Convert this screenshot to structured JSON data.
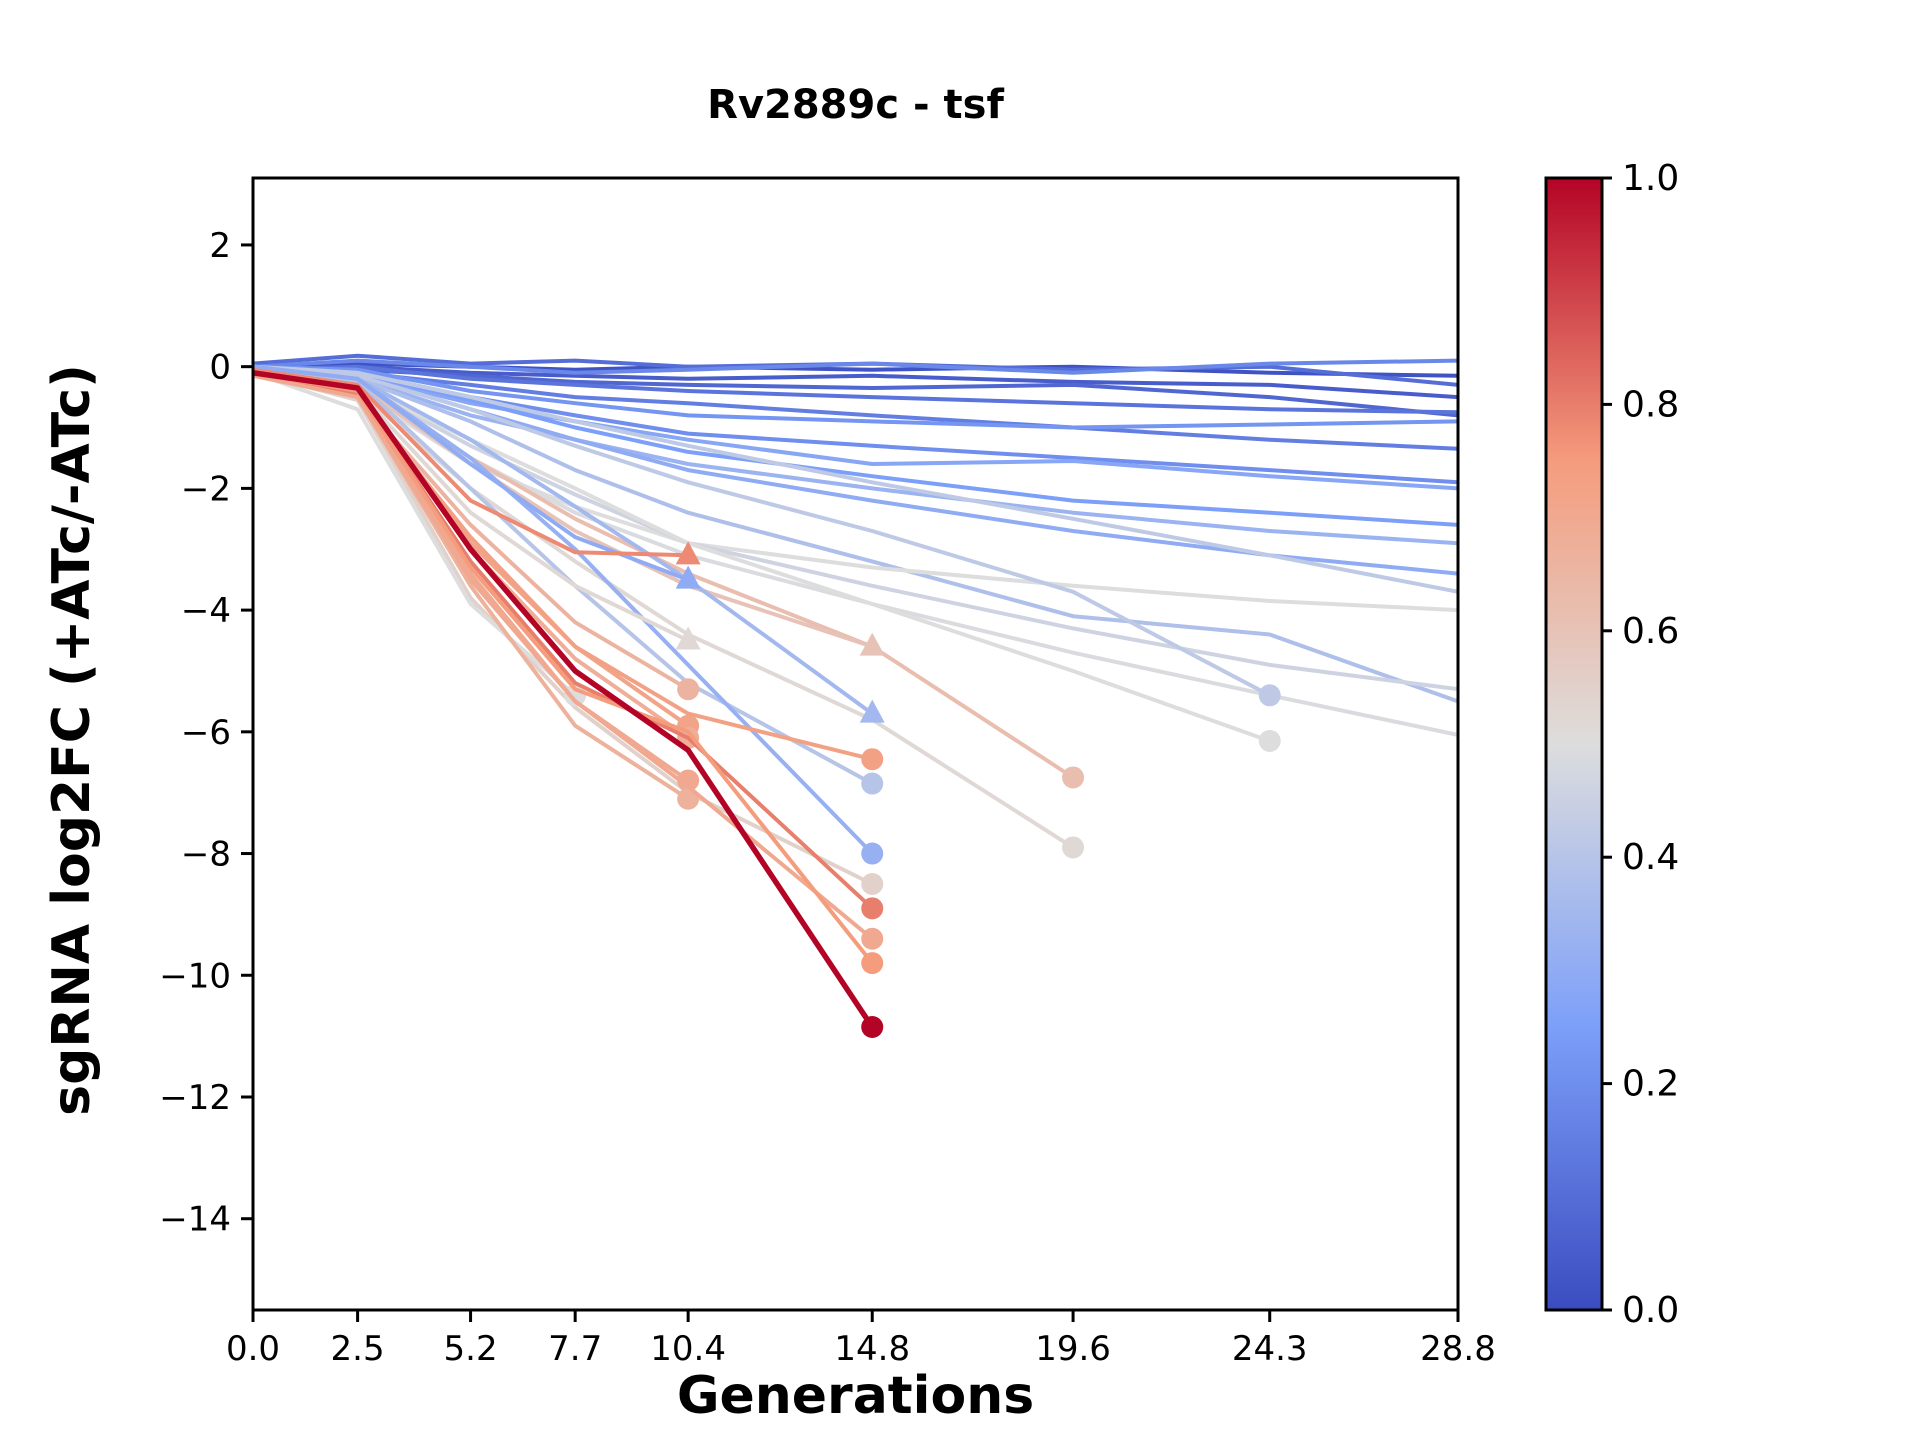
{
  "chart": {
    "title": "Rv2889c - tsf",
    "xlabel": "Generations",
    "ylabel": "sgRNA log2FC (+ATc/-ATc)"
  },
  "chart_data": {
    "type": "line",
    "title": "Rv2889c - tsf",
    "xlabel": "Generations",
    "ylabel": "sgRNA log2FC (+ATc/-ATc)",
    "xlim": [
      0,
      28.8
    ],
    "ylim": [
      -15.5,
      3.1
    ],
    "grid": false,
    "legend": "none",
    "xticks": [
      0.0,
      2.5,
      5.2,
      7.7,
      10.4,
      14.8,
      19.6,
      24.3,
      28.8
    ],
    "xtick_labels": [
      "0.0",
      "2.5",
      "5.2",
      "7.7",
      "10.4",
      "14.8",
      "19.6",
      "24.3",
      "28.8"
    ],
    "yticks": [
      2,
      0,
      -2,
      -4,
      -6,
      -8,
      -10,
      -12,
      -14
    ],
    "ytick_labels": [
      "2",
      "0",
      "−2",
      "−4",
      "−6",
      "−8",
      "−10",
      "−12",
      "−14"
    ],
    "colorbar": {
      "min": 0.0,
      "max": 1.0,
      "tick_values": [
        1.0,
        0.8,
        0.6,
        0.4,
        0.2,
        0.0
      ],
      "tick_labels": [
        "1.0",
        "0.8",
        "0.6",
        "0.4",
        "0.2",
        "0.0"
      ],
      "colormap": "coolwarm",
      "stops": [
        [
          0.0,
          "#3b4cc0"
        ],
        [
          0.25,
          "#7c9ff9"
        ],
        [
          0.5,
          "#dddddd"
        ],
        [
          0.75,
          "#f59c7d"
        ],
        [
          1.0,
          "#b40426"
        ]
      ]
    },
    "series": [
      {
        "c": 0.02,
        "marker": null,
        "x": [
          0,
          2.5,
          5.2,
          7.7,
          10.4,
          14.8,
          19.6,
          24.3,
          28.8
        ],
        "y": [
          0.0,
          0.05,
          0.0,
          -0.05,
          0.0,
          -0.05,
          0.0,
          -0.1,
          -0.15
        ]
      },
      {
        "c": 0.1,
        "marker": null,
        "x": [
          0,
          2.5,
          5.2,
          7.7,
          10.4,
          14.8,
          19.6,
          24.3,
          28.8
        ],
        "y": [
          0.05,
          0.18,
          0.05,
          0.1,
          0.0,
          0.05,
          -0.05,
          0.0,
          -0.3
        ]
      },
      {
        "c": 0.05,
        "marker": null,
        "x": [
          0,
          2.5,
          5.2,
          7.7,
          10.4,
          14.8,
          19.6,
          24.3,
          28.8
        ],
        "y": [
          -0.05,
          0.0,
          -0.1,
          -0.15,
          -0.2,
          -0.15,
          -0.25,
          -0.3,
          -0.5
        ]
      },
      {
        "c": 0.18,
        "marker": null,
        "x": [
          0,
          2.5,
          5.2,
          7.7,
          10.4,
          14.8,
          19.6,
          24.3,
          28.8
        ],
        "y": [
          0.0,
          0.1,
          0.0,
          -0.1,
          -0.05,
          0.05,
          -0.1,
          0.05,
          0.1
        ]
      },
      {
        "c": 0.08,
        "marker": null,
        "x": [
          0,
          2.5,
          5.2,
          7.7,
          10.4,
          14.8,
          19.6,
          24.3,
          28.8
        ],
        "y": [
          0.0,
          -0.05,
          -0.15,
          -0.25,
          -0.3,
          -0.35,
          -0.3,
          -0.5,
          -0.8
        ]
      },
      {
        "c": 0.12,
        "marker": null,
        "x": [
          0,
          2.5,
          5.2,
          7.7,
          10.4,
          14.8,
          19.6,
          24.3,
          28.8
        ],
        "y": [
          -0.05,
          0.0,
          -0.2,
          -0.3,
          -0.4,
          -0.5,
          -0.6,
          -0.7,
          -0.75
        ]
      },
      {
        "c": 0.15,
        "marker": null,
        "x": [
          0,
          2.5,
          5.2,
          7.7,
          10.4,
          14.8,
          19.6,
          24.3,
          28.8
        ],
        "y": [
          0.0,
          -0.1,
          -0.3,
          -0.5,
          -0.6,
          -0.8,
          -1.0,
          -1.2,
          -1.35
        ]
      },
      {
        "c": 0.22,
        "marker": null,
        "x": [
          0,
          2.5,
          5.2,
          7.7,
          10.4,
          14.8,
          19.6,
          24.3,
          28.8
        ],
        "y": [
          0.0,
          -0.05,
          -0.4,
          -0.6,
          -0.8,
          -0.9,
          -1.0,
          -0.95,
          -0.9
        ]
      },
      {
        "c": 0.2,
        "marker": null,
        "x": [
          0,
          2.5,
          5.2,
          7.7,
          10.4,
          14.8,
          19.6,
          24.3,
          28.8
        ],
        "y": [
          0.0,
          -0.1,
          -0.5,
          -0.8,
          -1.1,
          -1.3,
          -1.5,
          -1.7,
          -1.9
        ]
      },
      {
        "c": 0.28,
        "marker": null,
        "x": [
          0,
          2.5,
          5.2,
          7.7,
          10.4,
          14.8,
          19.6,
          24.3,
          28.8
        ],
        "y": [
          0.0,
          -0.15,
          -0.6,
          -0.9,
          -1.2,
          -1.6,
          -1.55,
          -1.8,
          -2.0
        ]
      },
      {
        "c": 0.25,
        "marker": null,
        "x": [
          0,
          2.5,
          5.2,
          7.7,
          10.4,
          14.8,
          19.6,
          24.3,
          28.8
        ],
        "y": [
          0.0,
          -0.1,
          -0.55,
          -1.0,
          -1.4,
          -1.8,
          -2.2,
          -2.4,
          -2.6
        ]
      },
      {
        "c": 0.33,
        "marker": null,
        "x": [
          0,
          2.5,
          5.2,
          7.7,
          10.4,
          14.8,
          19.6,
          24.3,
          28.8
        ],
        "y": [
          0.0,
          -0.2,
          -0.8,
          -1.2,
          -1.6,
          -2.0,
          -2.4,
          -2.7,
          -2.9
        ]
      },
      {
        "c": 0.3,
        "marker": null,
        "x": [
          0,
          2.5,
          5.2,
          7.7,
          10.4,
          14.8,
          19.6,
          24.3,
          28.8
        ],
        "y": [
          0.0,
          -0.15,
          -0.7,
          -1.2,
          -1.7,
          -2.2,
          -2.7,
          -3.1,
          -3.4
        ]
      },
      {
        "c": 0.38,
        "marker": null,
        "x": [
          0,
          2.5,
          5.2,
          7.7,
          10.4,
          14.8,
          19.6,
          24.3,
          28.8
        ],
        "y": [
          0.0,
          -0.2,
          -0.9,
          -1.7,
          -2.4,
          -3.2,
          -4.1,
          -4.4,
          -5.5
        ]
      },
      {
        "c": 0.42,
        "marker": null,
        "x": [
          0,
          2.5,
          5.2,
          7.7,
          10.4,
          14.8,
          19.6,
          24.3,
          28.8
        ],
        "y": [
          0.0,
          -0.1,
          -0.5,
          -0.9,
          -1.3,
          -1.9,
          -2.5,
          -3.1,
          -3.7
        ]
      },
      {
        "c": 0.5,
        "marker": null,
        "x": [
          0,
          2.5,
          5.2,
          7.7,
          10.4,
          14.8,
          19.6,
          24.3,
          28.8
        ],
        "y": [
          -0.05,
          -0.4,
          -1.6,
          -2.3,
          -2.9,
          -3.3,
          -3.6,
          -3.85,
          -4.0
        ]
      },
      {
        "c": 0.46,
        "marker": null,
        "x": [
          0,
          2.5,
          5.2,
          7.7,
          10.4,
          14.8,
          19.6,
          24.3,
          28.8
        ],
        "y": [
          -0.1,
          -0.3,
          -1.3,
          -2.1,
          -2.9,
          -3.6,
          -4.3,
          -4.9,
          -5.3
        ]
      },
      {
        "c": 0.49,
        "marker": null,
        "x": [
          0,
          2.5,
          5.2,
          7.7,
          10.4,
          14.8,
          19.6,
          24.3,
          28.8
        ],
        "y": [
          -0.1,
          -0.35,
          -1.5,
          -2.4,
          -3.1,
          -3.9,
          -4.7,
          -5.4,
          -6.05
        ]
      },
      {
        "c": 0.42,
        "marker": "circle",
        "x": [
          0,
          2.5,
          5.2,
          7.7,
          10.4,
          14.8,
          19.6,
          24.3
        ],
        "y": [
          0.0,
          -0.15,
          -0.7,
          -1.3,
          -1.9,
          -2.7,
          -3.7,
          -5.4
        ]
      },
      {
        "c": 0.5,
        "marker": "circle",
        "x": [
          0,
          2.5,
          5.2,
          7.7,
          10.4,
          14.8,
          19.6,
          24.3
        ],
        "y": [
          -0.05,
          -0.3,
          -1.2,
          -2.0,
          -2.9,
          -3.9,
          -5.0,
          -6.15
        ]
      },
      {
        "c": 0.52,
        "marker": "circle",
        "x": [
          0,
          2.5,
          5.2,
          7.7,
          10.4,
          14.8,
          19.6
        ],
        "y": [
          -0.1,
          -0.4,
          -2.0,
          -3.2,
          -4.4,
          -5.8,
          -7.9
        ]
      },
      {
        "c": 0.62,
        "marker": "circle",
        "x": [
          0,
          2.5,
          5.2,
          7.7,
          10.4,
          14.8,
          19.6
        ],
        "y": [
          -0.05,
          -0.3,
          -1.5,
          -2.5,
          -3.4,
          -4.6,
          -6.75
        ]
      },
      {
        "c": 0.6,
        "marker": "triangle",
        "x": [
          0,
          2.5,
          5.2,
          7.7,
          10.4,
          14.8
        ],
        "y": [
          -0.05,
          -0.3,
          -1.6,
          -2.7,
          -3.6,
          -4.6
        ]
      },
      {
        "c": 0.35,
        "marker": "triangle",
        "x": [
          0,
          2.5,
          5.2,
          7.7,
          10.4,
          14.8
        ],
        "y": [
          0.0,
          -0.2,
          -1.2,
          -2.3,
          -3.5,
          -5.7
        ]
      },
      {
        "c": 0.4,
        "marker": "circle",
        "x": [
          0,
          2.5,
          5.2,
          7.7,
          10.4,
          14.8
        ],
        "y": [
          0.0,
          -0.25,
          -2.0,
          -3.6,
          -5.2,
          -6.85
        ]
      },
      {
        "c": 0.32,
        "marker": "circle",
        "x": [
          0,
          2.5,
          5.2,
          7.7,
          10.4,
          14.8
        ],
        "y": [
          0.0,
          -0.2,
          -1.5,
          -3.0,
          -4.9,
          -8.0
        ]
      },
      {
        "c": 0.55,
        "marker": "circle",
        "x": [
          0,
          2.5,
          5.2,
          7.7,
          10.4,
          14.8
        ],
        "y": [
          -0.1,
          -0.55,
          -3.8,
          -5.6,
          -7.0,
          -8.5
        ]
      },
      {
        "c": 0.52,
        "marker": "triangle",
        "x": [
          0,
          2.5,
          5.2,
          7.7,
          10.4
        ],
        "y": [
          -0.1,
          -0.4,
          -2.4,
          -3.6,
          -4.5
        ]
      },
      {
        "c": 0.3,
        "marker": "triangle",
        "x": [
          0,
          2.5,
          5.2,
          7.7,
          10.4
        ],
        "y": [
          0.0,
          -0.2,
          -1.6,
          -2.8,
          -3.5
        ]
      },
      {
        "c": 0.78,
        "marker": "triangle",
        "x": [
          0,
          2.5,
          5.2,
          7.7,
          10.4
        ],
        "y": [
          -0.05,
          -0.3,
          -2.2,
          -3.05,
          -3.1
        ]
      },
      {
        "c": 0.5,
        "marker": "circle",
        "x": [
          0,
          2.5,
          5.2,
          7.7
        ],
        "y": [
          -0.1,
          -0.7,
          -3.9,
          -5.4
        ]
      },
      {
        "c": 0.66,
        "marker": "circle",
        "x": [
          0,
          2.5,
          5.2,
          7.7,
          10.4
        ],
        "y": [
          -0.1,
          -0.5,
          -2.6,
          -4.2,
          -5.3
        ]
      },
      {
        "c": 0.72,
        "marker": "circle",
        "x": [
          0,
          2.5,
          5.2,
          7.7,
          10.4
        ],
        "y": [
          -0.1,
          -0.4,
          -2.9,
          -4.6,
          -5.9
        ]
      },
      {
        "c": 0.68,
        "marker": "circle",
        "x": [
          0,
          2.5,
          5.2,
          7.7,
          10.4
        ],
        "y": [
          -0.1,
          -0.45,
          -3.0,
          -4.8,
          -6.1
        ]
      },
      {
        "c": 0.7,
        "marker": "circle",
        "x": [
          0,
          2.5,
          5.2,
          7.7,
          10.4
        ],
        "y": [
          -0.1,
          -0.45,
          -3.4,
          -5.5,
          -6.8
        ]
      },
      {
        "c": 0.67,
        "marker": "circle",
        "x": [
          0,
          2.5,
          5.2,
          7.7,
          10.4
        ],
        "y": [
          -0.1,
          -0.5,
          -3.6,
          -5.9,
          -7.1
        ]
      },
      {
        "c": 0.73,
        "marker": "circle",
        "x": [
          0,
          2.5,
          5.2,
          7.7,
          10.4,
          14.8
        ],
        "y": [
          -0.1,
          -0.5,
          -2.8,
          -4.6,
          -5.7,
          -6.45
        ]
      },
      {
        "c": 0.8,
        "marker": "circle",
        "x": [
          0,
          2.5,
          5.2,
          7.7,
          10.4,
          14.8
        ],
        "y": [
          -0.1,
          -0.45,
          -3.2,
          -5.2,
          -6.1,
          -8.9
        ]
      },
      {
        "c": 0.7,
        "marker": "circle",
        "x": [
          0,
          2.5,
          5.2,
          7.7,
          10.4,
          14.8
        ],
        "y": [
          -0.15,
          -0.5,
          -3.5,
          -5.5,
          -6.9,
          -9.4
        ]
      },
      {
        "c": 0.75,
        "marker": "circle",
        "x": [
          0,
          2.5,
          5.2,
          7.7,
          10.4,
          14.8
        ],
        "y": [
          -0.1,
          -0.4,
          -3.3,
          -5.3,
          -6.0,
          -9.8
        ]
      },
      {
        "c": 1.0,
        "marker": "circle",
        "lw": 5.5,
        "x": [
          0,
          2.5,
          5.2,
          7.7,
          10.4,
          14.8
        ],
        "y": [
          -0.1,
          -0.35,
          -3.0,
          -5.0,
          -6.3,
          -10.85
        ]
      }
    ]
  }
}
